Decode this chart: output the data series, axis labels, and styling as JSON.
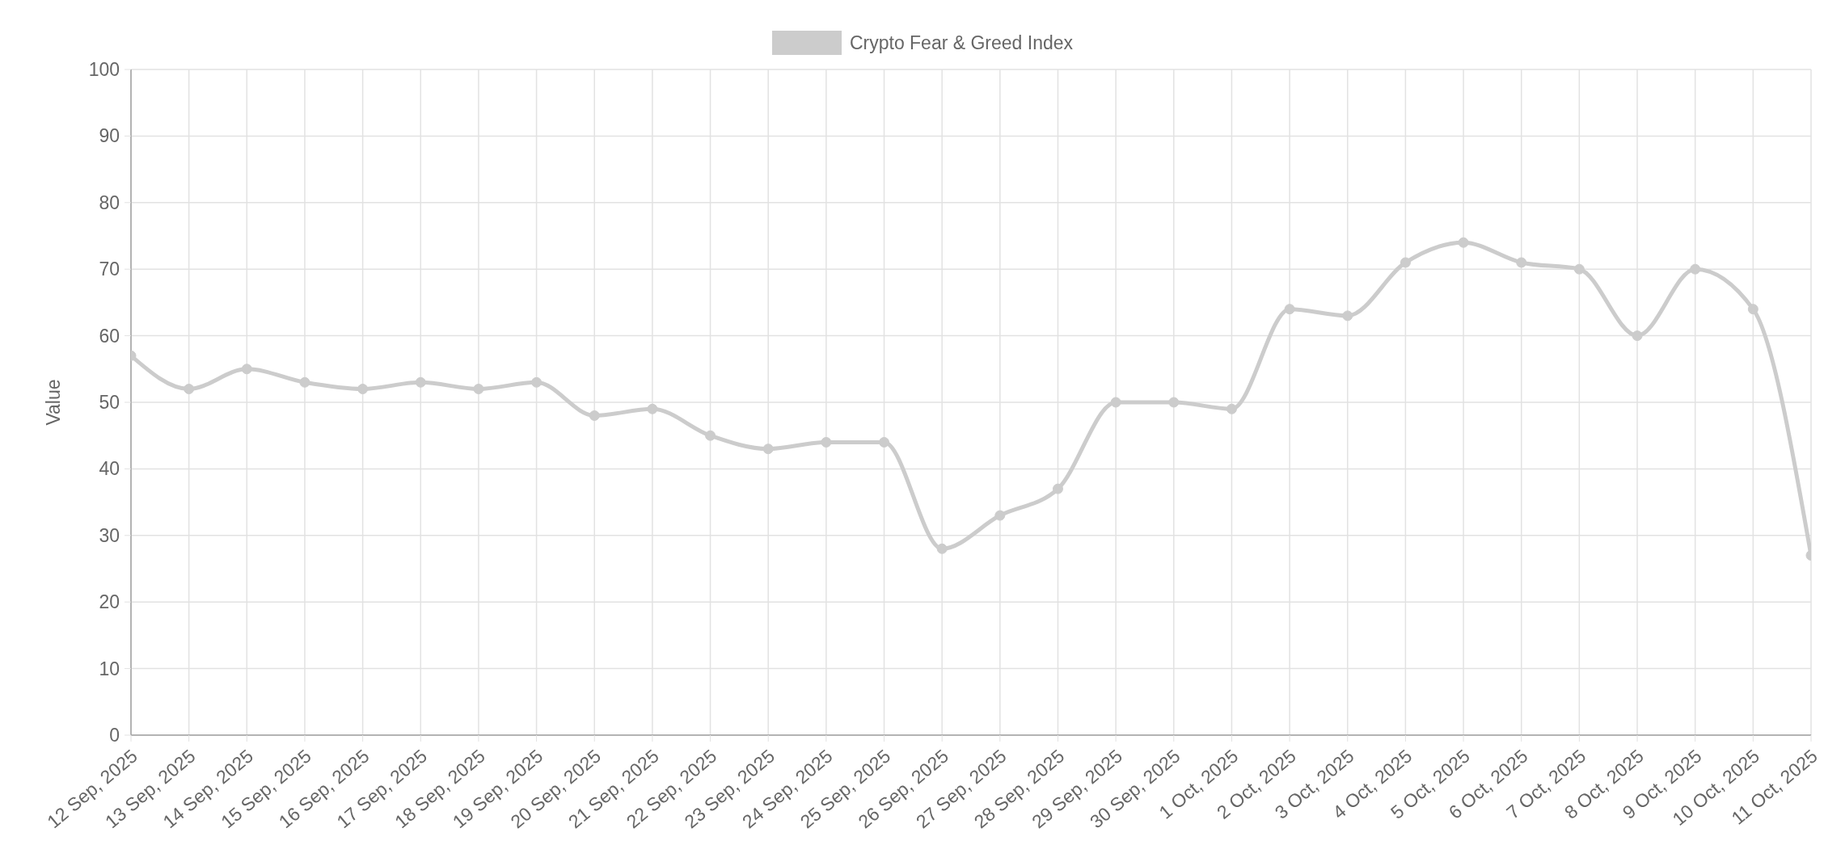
{
  "chart_data": {
    "type": "line",
    "ylabel": "Value",
    "categories": [
      "12 Sep, 2025",
      "13 Sep, 2025",
      "14 Sep, 2025",
      "15 Sep, 2025",
      "16 Sep, 2025",
      "17 Sep, 2025",
      "18 Sep, 2025",
      "19 Sep, 2025",
      "20 Sep, 2025",
      "21 Sep, 2025",
      "22 Sep, 2025",
      "23 Sep, 2025",
      "24 Sep, 2025",
      "25 Sep, 2025",
      "26 Sep, 2025",
      "27 Sep, 2025",
      "28 Sep, 2025",
      "29 Sep, 2025",
      "30 Sep, 2025",
      "1 Oct, 2025",
      "2 Oct, 2025",
      "3 Oct, 2025",
      "4 Oct, 2025",
      "5 Oct, 2025",
      "6 Oct, 2025",
      "7 Oct, 2025",
      "8 Oct, 2025",
      "9 Oct, 2025",
      "10 Oct, 2025",
      "11 Oct, 2025"
    ],
    "series": [
      {
        "name": "Crypto Fear & Greed Index",
        "color": "#cccccc",
        "values": [
          57,
          52,
          55,
          53,
          52,
          53,
          52,
          53,
          48,
          49,
          45,
          43,
          44,
          44,
          28,
          33,
          37,
          50,
          50,
          49,
          64,
          63,
          71,
          74,
          71,
          70,
          60,
          70,
          64,
          27
        ]
      }
    ],
    "ylim": [
      0,
      100
    ],
    "yticks": [
      0,
      10,
      20,
      30,
      40,
      50,
      60,
      70,
      80,
      90,
      100
    ],
    "grid": true,
    "legend": "top",
    "marker": "circle",
    "line_style": "solid"
  }
}
